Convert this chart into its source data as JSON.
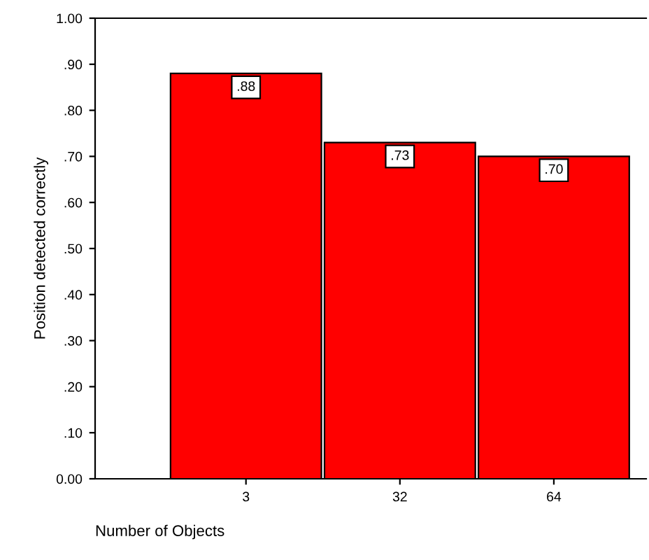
{
  "chart_data": {
    "type": "bar",
    "xlabel": "Number of Objects",
    "ylabel": "Position detected correctly",
    "categories": [
      "3",
      "32",
      "64"
    ],
    "values": [
      0.88,
      0.73,
      0.7
    ],
    "color": "#ff0000",
    "value_labels": [
      ".88",
      ".73",
      ".70"
    ],
    "ylim": [
      0,
      1
    ],
    "yticks": [
      {
        "value": 0,
        "label": "0.00"
      },
      {
        "value": 0.1,
        "label": ".10"
      },
      {
        "value": 0.2,
        "label": ".20"
      },
      {
        "value": 0.3,
        "label": ".30"
      },
      {
        "value": 0.4,
        "label": ".40"
      },
      {
        "value": 0.5,
        "label": ".50"
      },
      {
        "value": 0.6,
        "label": ".60"
      },
      {
        "value": 0.7,
        "label": ".70"
      },
      {
        "value": 0.8,
        "label": ".80"
      },
      {
        "value": 0.9,
        "label": ".90"
      },
      {
        "value": 1,
        "label": "1.00"
      }
    ],
    "grid": false
  }
}
